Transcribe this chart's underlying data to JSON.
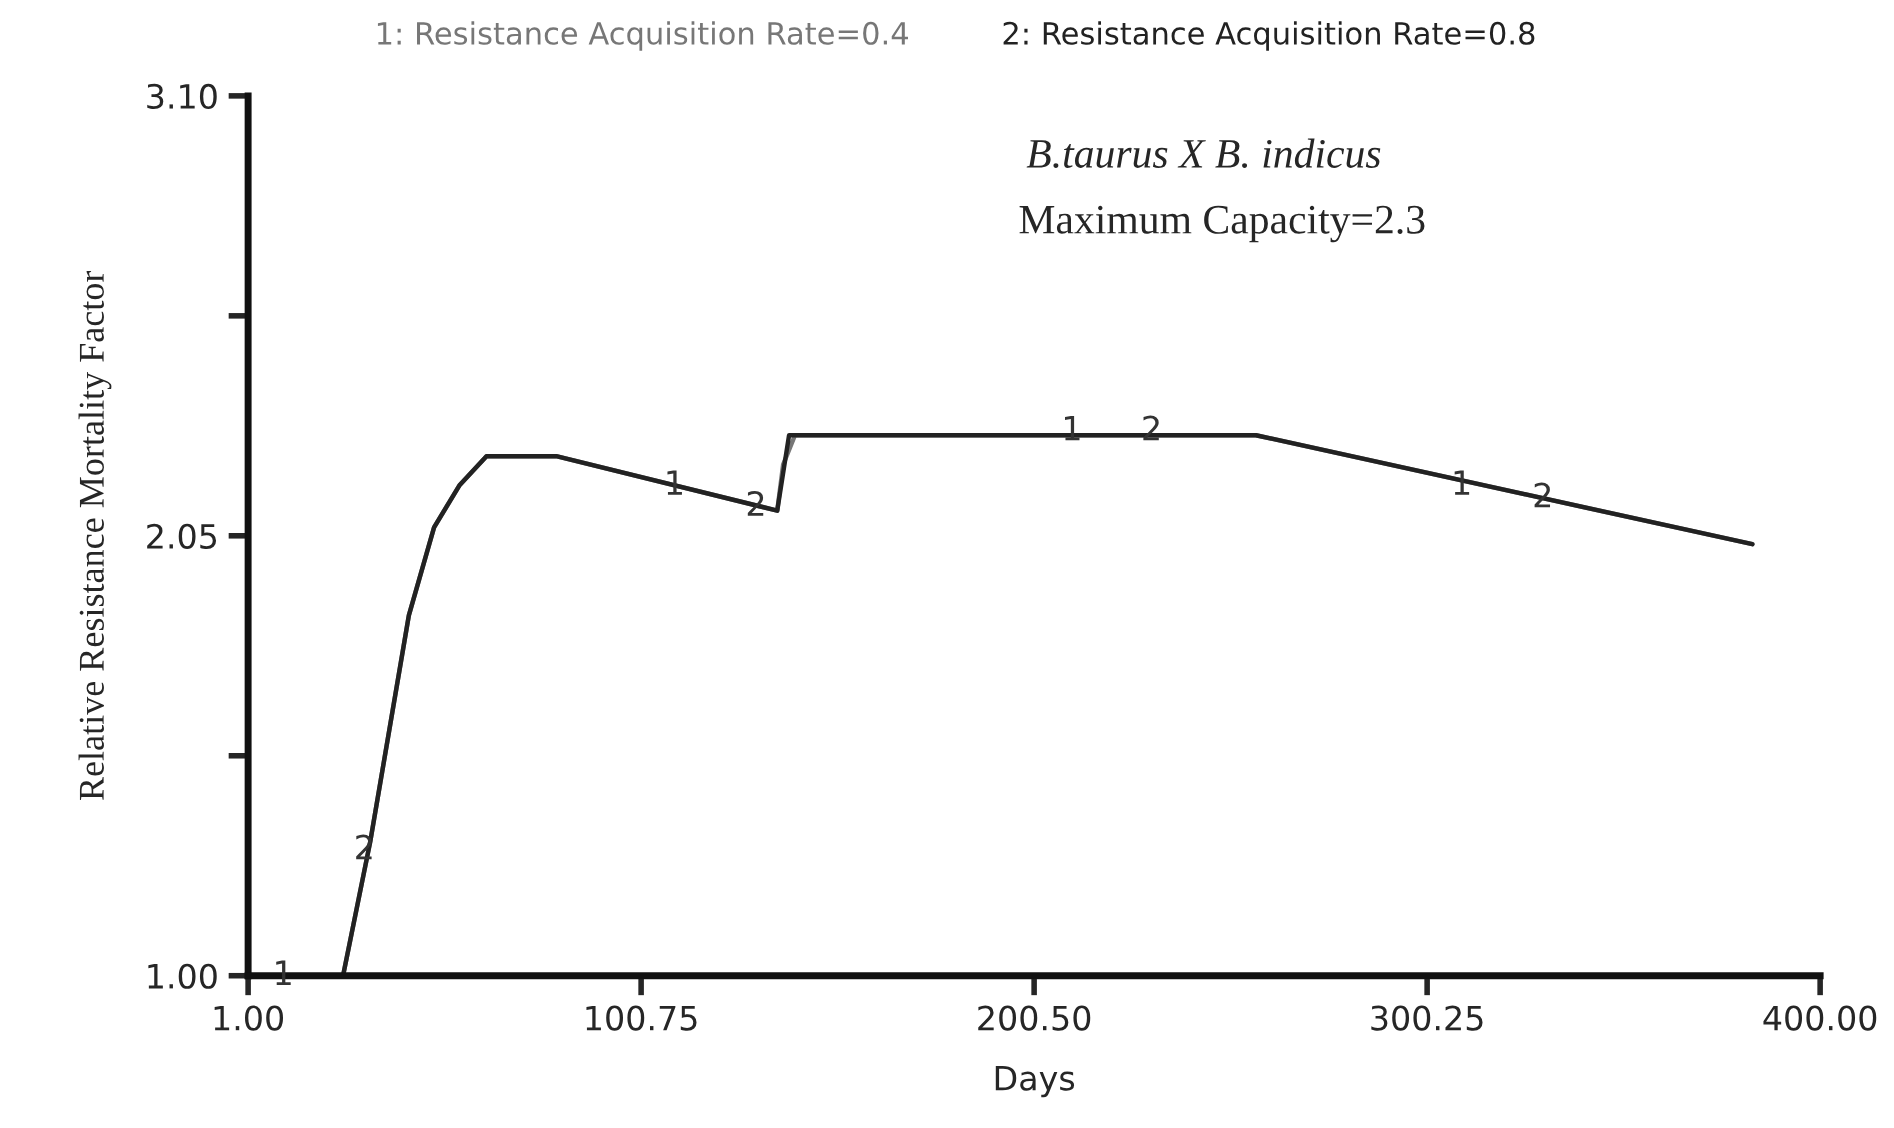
{
  "chart_data": {
    "type": "line",
    "xlabel": "Days",
    "ylabel": "Relative Resistance Mortality Factor",
    "xlim": [
      1,
      400
    ],
    "ylim": [
      1,
      3.1
    ],
    "xticks": [
      {
        "value": 1,
        "label": "1.00"
      },
      {
        "value": 100.75,
        "label": "100.75"
      },
      {
        "value": 200.5,
        "label": "200.50"
      },
      {
        "value": 300.25,
        "label": "300.25"
      },
      {
        "value": 400,
        "label": "400.00"
      }
    ],
    "yticks": [
      {
        "value": 1,
        "label": "1.00"
      },
      {
        "value": 1.525,
        "label": null
      },
      {
        "value": 2.05,
        "label": "2.05"
      },
      {
        "value": 2.575,
        "label": null
      },
      {
        "value": 3.1,
        "label": "3.10"
      }
    ],
    "grid": false,
    "legend": "top",
    "marker": "none",
    "line_style": "solid",
    "series": [
      {
        "name": "1: Resistance Acquisition Rate=0.4",
        "color": "#777777",
        "x": [
          1,
          25.1,
          32.0,
          41.8,
          48.2,
          54.6,
          61.5,
          79.2,
          135.3,
          136.8,
          139.8,
          256.8,
          382.8
        ],
        "values": [
          1.0,
          1.0,
          1.32,
          1.86,
          2.07,
          2.17,
          2.24,
          2.24,
          2.11,
          2.22,
          2.29,
          2.29,
          2.03
        ]
      },
      {
        "name": "2: Resistance Acquisition Rate=0.8",
        "color": "#222222",
        "x": [
          1,
          25.1,
          32.0,
          41.8,
          48.2,
          54.6,
          61.5,
          79.2,
          135.3,
          138.3,
          256.8,
          382.8
        ],
        "values": [
          1.0,
          1.0,
          1.32,
          1.86,
          2.07,
          2.17,
          2.24,
          2.24,
          2.11,
          2.29,
          2.29,
          2.03
        ]
      }
    ],
    "annotations": [
      "B.taurus X B. indicus",
      "Maximum Capacity=2.3",
      {
        "text": "1",
        "x": 9.9,
        "y": 1.0
      },
      {
        "text": "2",
        "x": 30.5,
        "y": 1.3
      },
      {
        "text": "1",
        "x": 109.2,
        "y": 2.17
      },
      {
        "text": "2",
        "x": 129.9,
        "y": 2.12
      },
      {
        "text": "1",
        "x": 210.1,
        "y": 2.3
      },
      {
        "text": "2",
        "x": 230.3,
        "y": 2.3
      },
      {
        "text": "1",
        "x": 309,
        "y": 2.17
      },
      {
        "text": "2",
        "x": 329.6,
        "y": 2.14
      }
    ]
  }
}
